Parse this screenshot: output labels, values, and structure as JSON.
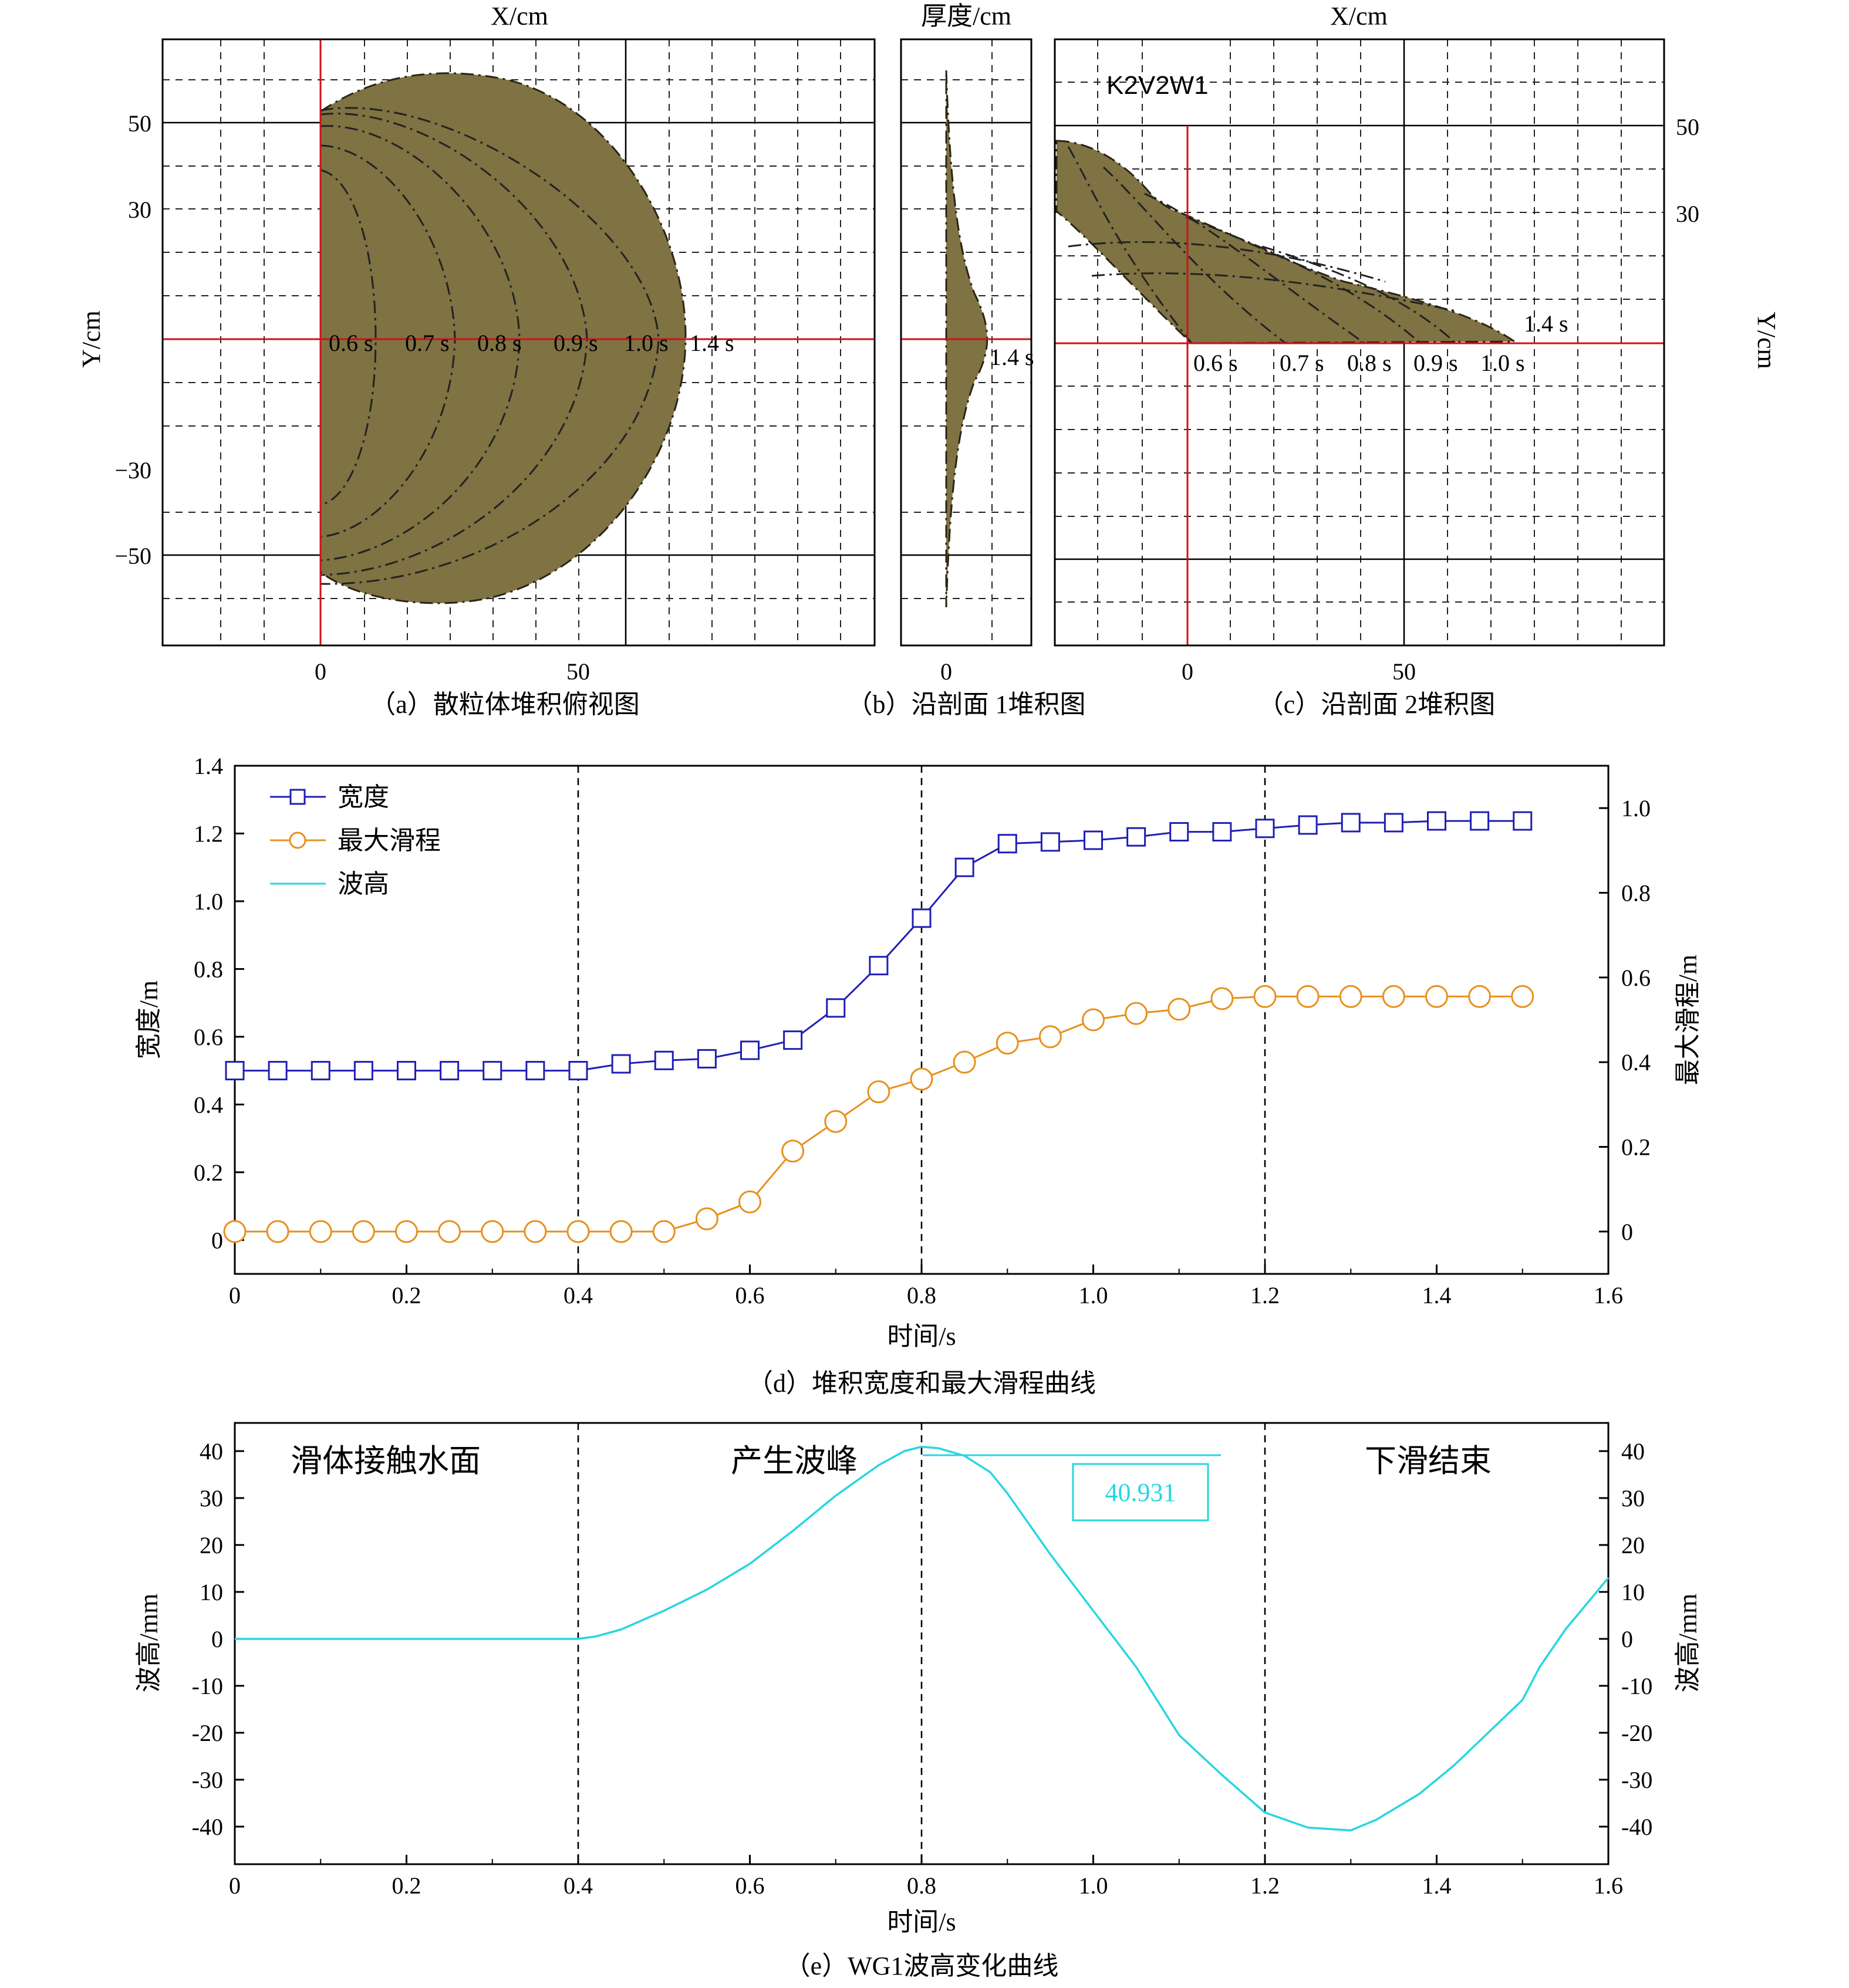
{
  "colors": {
    "pile": "#7f7243",
    "red_axes": "#d0101a",
    "width_series": "#1f1fb4",
    "slide_series": "#e8901c",
    "wave_series": "#27d6e0"
  },
  "panel_a": {
    "xlabel": "X/cm",
    "ylabel": "Y/cm",
    "caption": "（a）散粒体堆积俯视图",
    "xticks": [
      "0",
      "50"
    ],
    "yticks": [
      "50",
      "30",
      "−30",
      "−50"
    ],
    "front_labels": [
      "0.6 s",
      "0.7 s",
      "0.8 s",
      "0.9 s",
      "1.0 s",
      "1.4 s"
    ]
  },
  "panel_b": {
    "xlabel": "厚度/cm",
    "caption": "（b）沿剖面 1堆积图",
    "xticks": [
      "0"
    ],
    "time_label": "1.4 s"
  },
  "panel_c": {
    "xlabel": "X/cm",
    "ylabel": "Y/cm",
    "caption": "（c）沿剖面 2堆积图",
    "case_label": "K2V2W1",
    "xticks": [
      "0",
      "50"
    ],
    "yticks": [
      "50",
      "30"
    ],
    "time_top": "1.4 s",
    "front_labels": [
      "0.6 s",
      "0.7 s",
      "0.8 s",
      "0.9 s",
      "1.0 s"
    ]
  },
  "panel_d": {
    "xlabel": "时间/s",
    "ylabel_left": "宽度/m",
    "ylabel_right": "最大滑程/m",
    "caption": "（d）堆积宽度和最大滑程曲线",
    "legend": [
      "宽度",
      "最大滑程",
      "波高"
    ]
  },
  "panel_e": {
    "xlabel": "时间/s",
    "ylabel_left": "波高/mm",
    "ylabel_right": "波高/mm",
    "caption": "（e）WG1波高变化曲线",
    "annotations": [
      "滑体接触水面",
      "产生波峰",
      "下滑结束"
    ],
    "peak_label": "40.931"
  },
  "chart_data": [
    {
      "type": "line",
      "panel": "d",
      "x": [
        0,
        0.05,
        0.1,
        0.15,
        0.2,
        0.25,
        0.3,
        0.35,
        0.4,
        0.45,
        0.5,
        0.55,
        0.6,
        0.65,
        0.7,
        0.75,
        0.8,
        0.85,
        0.9,
        0.95,
        1.0,
        1.05,
        1.1,
        1.15,
        1.2,
        1.25,
        1.3,
        1.35,
        1.4,
        1.45,
        1.5
      ],
      "series": [
        {
          "name": "宽度",
          "axis": "left",
          "marker": "square",
          "values": [
            0.5,
            0.5,
            0.5,
            0.5,
            0.5,
            0.5,
            0.5,
            0.5,
            0.5,
            0.52,
            0.53,
            0.535,
            0.56,
            0.59,
            0.685,
            0.81,
            0.95,
            1.1,
            1.17,
            1.175,
            1.18,
            1.19,
            1.205,
            1.205,
            1.215,
            1.225,
            1.232,
            1.232,
            1.237,
            1.237,
            1.237
          ]
        },
        {
          "name": "最大滑程",
          "axis": "right",
          "marker": "circle",
          "values": [
            0,
            0,
            0,
            0,
            0,
            0,
            0,
            0,
            0,
            0,
            0,
            0.03,
            0.07,
            0.19,
            0.26,
            0.33,
            0.36,
            0.4,
            0.445,
            0.46,
            0.5,
            0.515,
            0.525,
            0.55,
            0.555,
            0.555,
            0.555,
            0.555,
            0.555,
            0.555,
            0.555
          ]
        }
      ],
      "xlim": [
        0,
        1.6
      ],
      "ylim_left": [
        -0.1,
        1.4
      ],
      "ylim_right": [
        -0.1,
        1.1
      ],
      "xticks": [
        0,
        0.2,
        0.4,
        0.6,
        0.8,
        1.0,
        1.2,
        1.4,
        1.6
      ],
      "xtick_labels": [
        "0",
        "0.2",
        "0.4",
        "0.6",
        "0.8",
        "1.0",
        "1.2",
        "1.4",
        "1.6"
      ],
      "yticks_left": [
        0,
        0.2,
        0.4,
        0.6,
        0.8,
        1.0,
        1.2,
        1.4
      ],
      "ytick_labels_left": [
        "0",
        "0.2",
        "0.4",
        "0.6",
        "0.8",
        "1.0",
        "1.2",
        "1.4"
      ],
      "yticks_right": [
        0,
        0.2,
        0.4,
        0.6,
        0.8,
        1.0
      ],
      "ytick_labels_right": [
        "0",
        "0.2",
        "0.4",
        "0.6",
        "0.8",
        "1.0"
      ],
      "vlines": [
        0.4,
        0.8,
        1.2
      ],
      "legend_position": "top-left"
    },
    {
      "type": "line",
      "panel": "e",
      "series": [
        {
          "name": "波高",
          "x": [
            0,
            0.1,
            0.2,
            0.3,
            0.38,
            0.4,
            0.42,
            0.45,
            0.5,
            0.55,
            0.6,
            0.65,
            0.7,
            0.75,
            0.78,
            0.8,
            0.82,
            0.85,
            0.88,
            0.9,
            0.95,
            1.0,
            1.05,
            1.1,
            1.15,
            1.2,
            1.25,
            1.3,
            1.33,
            1.38,
            1.42,
            1.46,
            1.5,
            1.52,
            1.55,
            1.6
          ],
          "values": [
            0,
            0,
            0,
            0,
            0,
            0,
            0.5,
            2,
            6,
            10.5,
            16,
            23,
            30.5,
            37,
            40,
            40.93,
            40.6,
            39,
            35.5,
            31,
            18,
            6,
            -6,
            -20.5,
            -29,
            -37,
            -40.2,
            -40.8,
            -38.5,
            -33,
            -27,
            -20,
            -13,
            -6,
            2,
            13
          ]
        }
      ],
      "xlim": [
        0,
        1.6
      ],
      "ylim": [
        -48,
        46
      ],
      "xticks": [
        0,
        0.2,
        0.4,
        0.6,
        0.8,
        1.0,
        1.2,
        1.4,
        1.6
      ],
      "xtick_labels": [
        "0",
        "0.2",
        "0.4",
        "0.6",
        "0.8",
        "1.0",
        "1.2",
        "1.4",
        "1.6"
      ],
      "yticks": [
        40,
        30,
        20,
        10,
        0,
        -10,
        -20,
        -30,
        -40
      ],
      "ytick_labels": [
        "40",
        "30",
        "20",
        "10",
        "0",
        "-10",
        "-20",
        "-30",
        "-40"
      ],
      "vlines": [
        0.4,
        0.8,
        1.2
      ],
      "peak_value": 40.931,
      "peak_time": 0.8
    }
  ]
}
